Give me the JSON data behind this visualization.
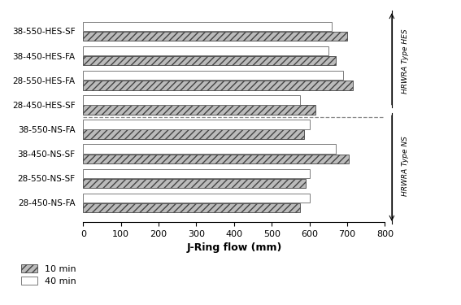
{
  "categories": [
    "38-550-HES-SF",
    "38-450-HES-FA",
    "28-550-HES-FA",
    "28-450-HES-SF",
    "38-550-NS-FA",
    "38-450-NS-SF",
    "28-550-NS-SF",
    "28-450-NS-FA"
  ],
  "values_10min": [
    700,
    670,
    715,
    615,
    585,
    705,
    590,
    575
  ],
  "values_40min": [
    660,
    650,
    690,
    575,
    600,
    670,
    600,
    600
  ],
  "xlabel": "J-Ring flow (mm)",
  "xlim": [
    0,
    800
  ],
  "xticks": [
    0,
    100,
    200,
    300,
    400,
    500,
    600,
    700,
    800
  ],
  "group1_label": "HRWRA Type HES",
  "group2_label": "HRWRA Type NS",
  "legend_10min": "10 min",
  "legend_40min": "40 min",
  "bg_color": "#ffffff",
  "fig_width": 5.67,
  "fig_height": 3.75,
  "dpi": 100
}
